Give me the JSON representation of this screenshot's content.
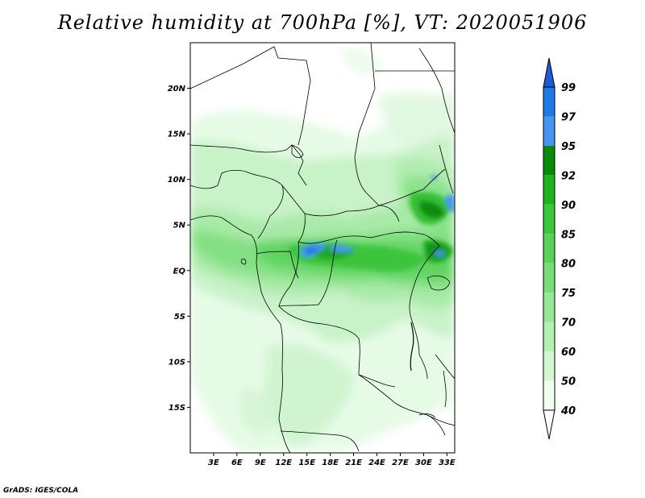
{
  "title": "Relative humidity at 700hPa [%], VT: 2020051906",
  "credit": "GrADS: IGES/COLA",
  "map": {
    "lat_ticks": [
      "20N",
      "15N",
      "10N",
      "5N",
      "EQ",
      "5S",
      "10S",
      "15S"
    ],
    "lat_values": [
      20,
      15,
      10,
      5,
      0,
      -5,
      -10,
      -15
    ],
    "lon_ticks": [
      "3E",
      "6E",
      "9E",
      "12E",
      "15E",
      "18E",
      "21E",
      "24E",
      "27E",
      "30E",
      "33E"
    ],
    "lon_values": [
      3,
      6,
      9,
      12,
      15,
      18,
      21,
      24,
      27,
      30,
      33
    ],
    "lon_range": [
      0,
      34
    ],
    "lat_range": [
      -20,
      25
    ]
  },
  "colorbar": {
    "levels": [
      "99",
      "97",
      "95",
      "92",
      "90",
      "85",
      "80",
      "75",
      "70",
      "60",
      "50",
      "40"
    ],
    "colors": [
      "#1e5ad8",
      "#1e78e6",
      "#4696f0",
      "#0a8c0a",
      "#1eb41e",
      "#3cc83c",
      "#5ad25a",
      "#78dc78",
      "#96e696",
      "#b4f0b4",
      "#d2f8d2",
      "#f0fff0"
    ]
  },
  "palette": {
    "ocean": "#ffffff",
    "border": "#000000"
  }
}
